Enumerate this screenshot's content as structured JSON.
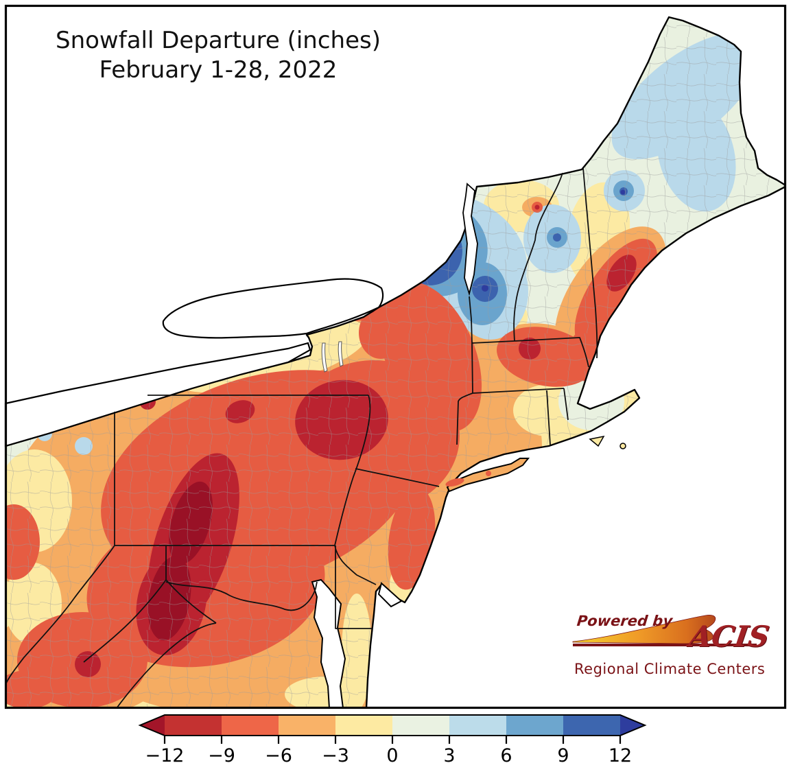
{
  "title": {
    "line1": "Snowfall Departure (inches)",
    "line2": "February 1-28, 2022"
  },
  "colorbar": {
    "units": "inches",
    "tick_labels": [
      "−12",
      "−9",
      "−6",
      "−3",
      "0",
      "3",
      "6",
      "9",
      "12"
    ],
    "tick_values": [
      -12,
      -9,
      -6,
      -3,
      0,
      3,
      6,
      9,
      12
    ],
    "segment_colors": [
      "#c43231",
      "#ee6648",
      "#f9b268",
      "#fdeaa2",
      "#eaf2e2",
      "#bcdcea",
      "#6da6ce",
      "#3d66af"
    ],
    "extend_left_color": "#a31529",
    "extend_right_color": "#2e3d9e"
  },
  "logo": {
    "powered_by": "Powered by",
    "brand": "ACIS",
    "subtitle": "Regional Climate Centers"
  }
}
